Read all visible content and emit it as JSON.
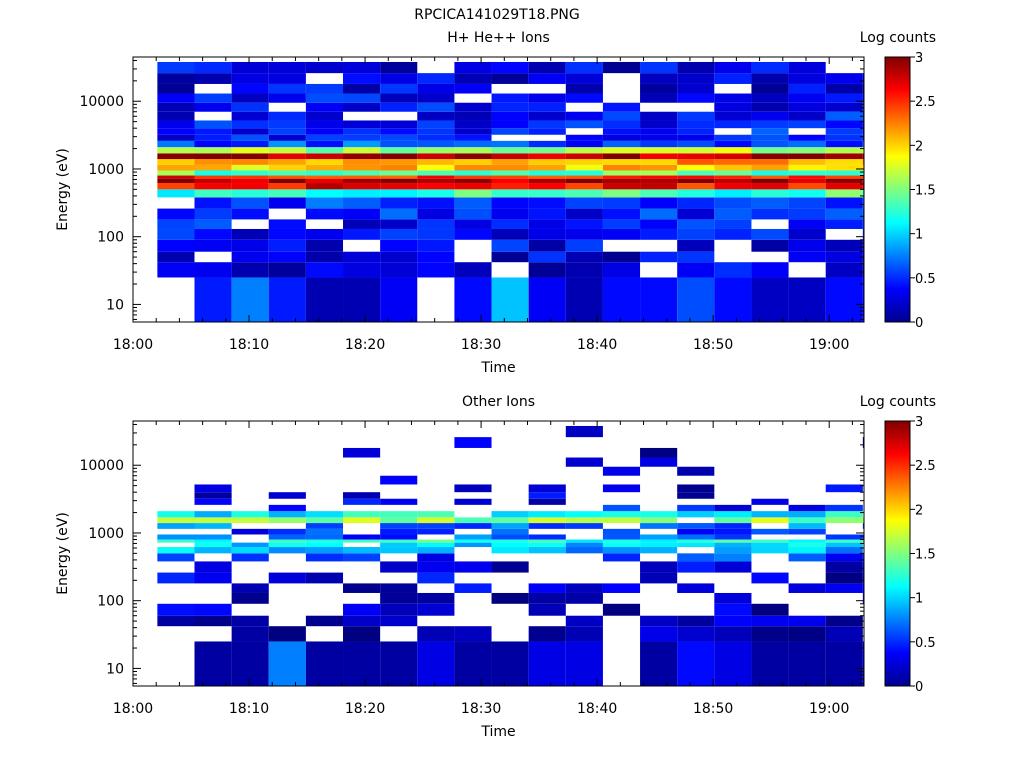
{
  "figure_title": "RPCICA141029T18.PNG",
  "chart_data": [
    {
      "type": "heatmap",
      "title": "H+ He++ Ions",
      "xlabel": "Time",
      "ylabel": "Energy (eV)",
      "colorbar_label": "Log counts",
      "x_ticks": [
        "18:00",
        "18:10",
        "18:20",
        "18:30",
        "18:40",
        "18:50",
        "19:00"
      ],
      "y_ticks": [
        "10",
        "100",
        "1000",
        "10000"
      ],
      "colorbar_ticks": [
        "0",
        "0.5",
        "1",
        "1.5",
        "2",
        "2.5",
        "3"
      ],
      "xlim_minutes": [
        0,
        63
      ],
      "ylim_eV": [
        5.5,
        45000
      ],
      "zlim": [
        0,
        3
      ],
      "time_bin_start_minutes": 2.1,
      "time_bin_width_minutes": 3.2,
      "time_bins": 20,
      "energy_bands_eV": [
        [
          25,
          42
        ],
        [
          42,
          60
        ],
        [
          60,
          90
        ],
        [
          90,
          130
        ],
        [
          130,
          180
        ],
        [
          180,
          260
        ],
        [
          260,
          380
        ],
        [
          380,
          500
        ],
        [
          500,
          620
        ],
        [
          620,
          720
        ],
        [
          720,
          800
        ],
        [
          800,
          950
        ],
        [
          950,
          1150
        ],
        [
          1150,
          1400
        ],
        [
          1400,
          1700
        ],
        [
          1700,
          2100
        ],
        [
          2100,
          2600
        ],
        [
          2600,
          3200
        ],
        [
          3200,
          4000
        ],
        [
          4000,
          5200
        ],
        [
          5200,
          7000
        ],
        [
          7000,
          9500
        ],
        [
          9500,
          13000
        ],
        [
          13000,
          18000
        ],
        [
          18000,
          26000
        ],
        [
          26000,
          38000
        ]
      ],
      "low_energy_values": [
        -1,
        0.45,
        0.75,
        0.45,
        0.15,
        0.15,
        0.35,
        -1,
        0.4,
        0.95,
        0.35,
        0.15,
        0.4,
        0.4,
        0.6,
        0.4,
        0.2,
        0.2,
        0.4,
        0.4
      ],
      "band_levels": [
        0.3,
        0.3,
        0.35,
        0.35,
        0.4,
        0.45,
        0.5,
        1.3,
        2.6,
        2.85,
        2.55,
        1.4,
        2.0,
        2.2,
        2.9,
        1.6,
        0.6,
        0.45,
        0.45,
        0.4,
        0.4,
        0.35,
        0.35,
        0.3,
        0.3,
        0.3
      ],
      "band_fill": [
        0.8,
        0.82,
        0.85,
        0.85,
        0.9,
        0.92,
        0.95,
        1,
        1,
        1,
        1,
        1,
        1,
        1,
        1,
        1,
        0.95,
        0.92,
        0.92,
        0.92,
        0.9,
        0.9,
        0.88,
        0.85,
        0.85,
        0.85
      ]
    },
    {
      "type": "heatmap",
      "title": "Other Ions",
      "xlabel": "Time",
      "ylabel": "Energy (eV)",
      "colorbar_label": "Log counts",
      "x_ticks": [
        "18:00",
        "18:10",
        "18:20",
        "18:30",
        "18:40",
        "18:50",
        "19:00"
      ],
      "y_ticks": [
        "10",
        "100",
        "1000",
        "10000"
      ],
      "colorbar_ticks": [
        "0",
        "0.5",
        "1",
        "1.5",
        "2",
        "2.5",
        "3"
      ],
      "xlim_minutes": [
        0,
        63
      ],
      "ylim_eV": [
        5.5,
        45000
      ],
      "zlim": [
        0,
        3
      ],
      "time_bin_start_minutes": 2.1,
      "time_bin_width_minutes": 3.2,
      "time_bins": 20,
      "energy_bands_eV": [
        [
          25,
          42
        ],
        [
          42,
          60
        ],
        [
          60,
          90
        ],
        [
          90,
          130
        ],
        [
          130,
          180
        ],
        [
          180,
          260
        ],
        [
          260,
          380
        ],
        [
          380,
          500
        ],
        [
          500,
          620
        ],
        [
          620,
          720
        ],
        [
          720,
          800
        ],
        [
          800,
          950
        ],
        [
          950,
          1150
        ],
        [
          1150,
          1400
        ],
        [
          1400,
          1700
        ],
        [
          1700,
          2100
        ],
        [
          2100,
          2600
        ],
        [
          2600,
          3200
        ],
        [
          3200,
          4000
        ],
        [
          4000,
          5200
        ],
        [
          5200,
          7000
        ],
        [
          7000,
          9500
        ],
        [
          9500,
          13000
        ],
        [
          13000,
          18000
        ],
        [
          18000,
          26000
        ],
        [
          26000,
          38000
        ]
      ],
      "low_energy_values": [
        -1,
        0.1,
        0.1,
        0.75,
        0.1,
        0.1,
        0.1,
        0.3,
        0.1,
        0.1,
        0.3,
        0.3,
        -1,
        0.1,
        0.4,
        0.3,
        0.1,
        0.1,
        0.1,
        0.35
      ],
      "band_levels": [
        0.15,
        0.15,
        0.2,
        0.2,
        0.25,
        0.25,
        0.3,
        0.5,
        0.9,
        1.0,
        1.3,
        0.6,
        0.5,
        0.7,
        1.55,
        1.1,
        0.5,
        0.35,
        0.3,
        0.25,
        0.2,
        0.15,
        0.15,
        0.15,
        0.15,
        0.15
      ],
      "band_fill": [
        0.75,
        0.72,
        0.6,
        0.55,
        0.5,
        0.5,
        0.5,
        0.55,
        0.75,
        0.85,
        0.9,
        0.7,
        0.6,
        0.7,
        0.95,
        0.85,
        0.55,
        0.5,
        0.45,
        0.3,
        0.15,
        0.12,
        0.12,
        0.1,
        0.1,
        0.08
      ]
    }
  ]
}
